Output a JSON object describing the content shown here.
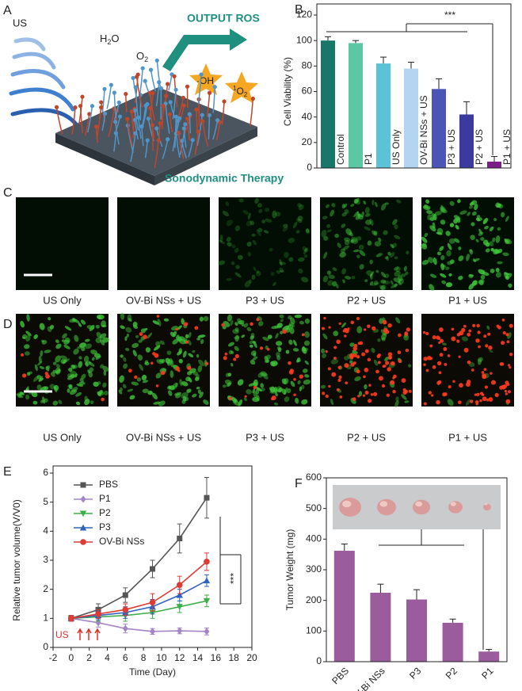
{
  "panel_a": {
    "label": "A",
    "us": "US",
    "h2o": [
      "H",
      "2",
      "O"
    ],
    "o2": [
      "O",
      "2"
    ],
    "output": "OUTPUT ROS",
    "oh": "·OH",
    "singlet": [
      "1",
      "O",
      "2"
    ],
    "therapy": "Sonodynamic Therapy"
  },
  "panel_c": {
    "label": "C",
    "captions": [
      "US Only",
      "OV-Bi NSs + US",
      "P3 + US",
      "P2 + US",
      "P1 + US"
    ]
  },
  "panel_d": {
    "label": "D",
    "captions": [
      "US Only",
      "OV-Bi NSs + US",
      "P3 + US",
      "P2 + US",
      "P1 + US"
    ]
  },
  "chart_data": [
    {
      "type": "bar",
      "label": "B",
      "categories": [
        "Control",
        "P1",
        "US Only",
        "OV-Bi NSs + US",
        "P3 + US",
        "P2 + US",
        "P1 + US"
      ],
      "values": [
        100,
        98,
        82,
        78,
        62,
        42,
        5
      ],
      "errors": [
        3,
        2,
        5,
        5,
        8,
        10,
        4
      ],
      "colors": [
        "#17786a",
        "#5cc7a3",
        "#5cc3d6",
        "#b3d5f2",
        "#4b55b5",
        "#3b3a9e",
        "#7b1f86"
      ],
      "ylabel": "Cell Viability (%)",
      "ylim": [
        0,
        120
      ],
      "yticks": [
        0,
        20,
        40,
        60,
        80,
        100,
        120
      ],
      "annotation": "***"
    },
    {
      "type": "line",
      "label": "E",
      "x": [
        0,
        3,
        6,
        9,
        12,
        15
      ],
      "series": [
        {
          "name": "PBS",
          "color": "#555555",
          "marker": "square",
          "values": [
            1,
            1.3,
            1.8,
            2.7,
            3.75,
            5.15
          ],
          "errors": [
            0.1,
            0.2,
            0.25,
            0.3,
            0.5,
            0.7
          ]
        },
        {
          "name": "P1",
          "color": "#a485c6",
          "marker": "diamond",
          "values": [
            1,
            0.85,
            0.65,
            0.55,
            0.57,
            0.55
          ],
          "errors": [
            0.1,
            0.15,
            0.15,
            0.1,
            0.1,
            0.12
          ]
        },
        {
          "name": "P2",
          "color": "#3fae4a",
          "marker": "triangle-down",
          "values": [
            1,
            1.05,
            1.1,
            1.2,
            1.4,
            1.6
          ],
          "errors": [
            0.1,
            0.15,
            0.2,
            0.2,
            0.2,
            0.2
          ]
        },
        {
          "name": "P3",
          "color": "#2f62c0",
          "marker": "triangle-up",
          "values": [
            1,
            1.1,
            1.2,
            1.4,
            1.8,
            2.3
          ],
          "errors": [
            0.1,
            0.15,
            0.2,
            0.25,
            0.2,
            0.2
          ]
        },
        {
          "name": "OV-Bi NSs",
          "color": "#e03a35",
          "marker": "circle",
          "values": [
            1,
            1.15,
            1.3,
            1.55,
            2.15,
            2.95
          ],
          "errors": [
            0.1,
            0.15,
            0.2,
            0.3,
            0.3,
            0.3
          ]
        }
      ],
      "xlabel": "Time (Day)",
      "ylabel": "Relative tumor volume(V/V0)",
      "xlim": [
        -2,
        20
      ],
      "xticks": [
        -2,
        0,
        2,
        4,
        6,
        8,
        10,
        12,
        14,
        16,
        18,
        20
      ],
      "ylim": [
        0,
        6
      ],
      "yticks": [
        0,
        1,
        2,
        3,
        4,
        5,
        6
      ],
      "annotation": "***",
      "treatment": "US"
    },
    {
      "type": "bar",
      "label": "F",
      "categories": [
        "PBS",
        "OV-Bi NSs",
        "P3",
        "P2",
        "P1"
      ],
      "values": [
        362,
        225,
        203,
        127,
        33
      ],
      "errors": [
        22,
        28,
        32,
        12,
        7
      ],
      "color": "#9b5c9d",
      "ylabel": "Tumor Weight (mg)",
      "ylim": [
        0,
        600
      ],
      "yticks": [
        0,
        100,
        200,
        300,
        400,
        500,
        600
      ],
      "annotation": "***"
    }
  ]
}
